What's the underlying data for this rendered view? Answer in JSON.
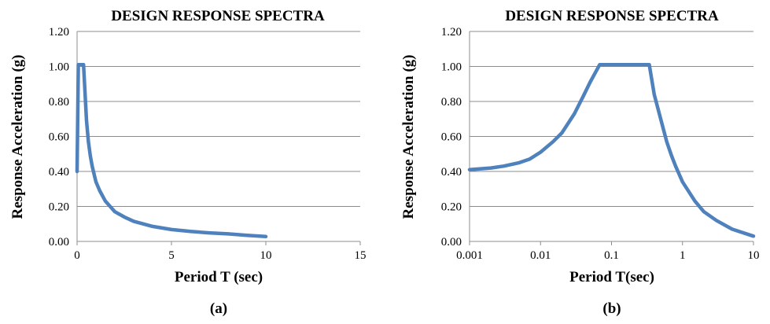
{
  "chart_data": [
    {
      "type": "line",
      "title": "DESIGN RESPONSE SPECTRA",
      "xlabel": "Period T (sec)",
      "ylabel": "Response Acceleration (g)",
      "caption": "(a)",
      "xscale": "linear",
      "xlim": [
        0,
        15
      ],
      "ylim": [
        0,
        1.2
      ],
      "xticks": [
        "0",
        "5",
        "10",
        "15"
      ],
      "yticks": [
        "0.00",
        "0.20",
        "0.40",
        "0.60",
        "0.80",
        "1.00",
        "1.20"
      ],
      "grid": "horizontal",
      "color": "#4f81bd",
      "series": [
        {
          "x": [
            0,
            0.068,
            0.34,
            0.5,
            0.6,
            0.7,
            0.8,
            1.0,
            1.2,
            1.5,
            2.0,
            2.5,
            3.0,
            4.0,
            5.0,
            6.0,
            7.0,
            8.0,
            9.0,
            10.0
          ],
          "y": [
            0.4,
            1.01,
            1.01,
            0.69,
            0.57,
            0.49,
            0.43,
            0.34,
            0.29,
            0.23,
            0.17,
            0.14,
            0.115,
            0.086,
            0.068,
            0.057,
            0.049,
            0.043,
            0.035,
            0.028
          ]
        }
      ]
    },
    {
      "type": "line",
      "title": "DESIGN RESPONSE SPECTRA",
      "xlabel": "Period T(sec)",
      "ylabel": "Response Acceleration (g)",
      "caption": "(b)",
      "xscale": "log",
      "xlim": [
        0.001,
        10
      ],
      "ylim": [
        0,
        1.2
      ],
      "xticks": [
        "0.001",
        "0.01",
        "0.1",
        "1",
        "10"
      ],
      "yticks": [
        "0.00",
        "0.20",
        "0.40",
        "0.60",
        "0.80",
        "1.00",
        "1.20"
      ],
      "grid": "horizontal",
      "color": "#4f81bd",
      "series": [
        {
          "x": [
            0.001,
            0.002,
            0.003,
            0.005,
            0.007,
            0.01,
            0.015,
            0.02,
            0.03,
            0.04,
            0.05,
            0.068,
            0.34,
            0.4,
            0.5,
            0.6,
            0.7,
            0.8,
            1.0,
            1.5,
            2.0,
            3.0,
            5.0,
            10.0
          ],
          "y": [
            0.41,
            0.42,
            0.43,
            0.45,
            0.47,
            0.51,
            0.57,
            0.62,
            0.73,
            0.83,
            0.91,
            1.01,
            1.01,
            0.84,
            0.69,
            0.57,
            0.49,
            0.43,
            0.34,
            0.23,
            0.17,
            0.12,
            0.07,
            0.03
          ]
        }
      ]
    }
  ]
}
